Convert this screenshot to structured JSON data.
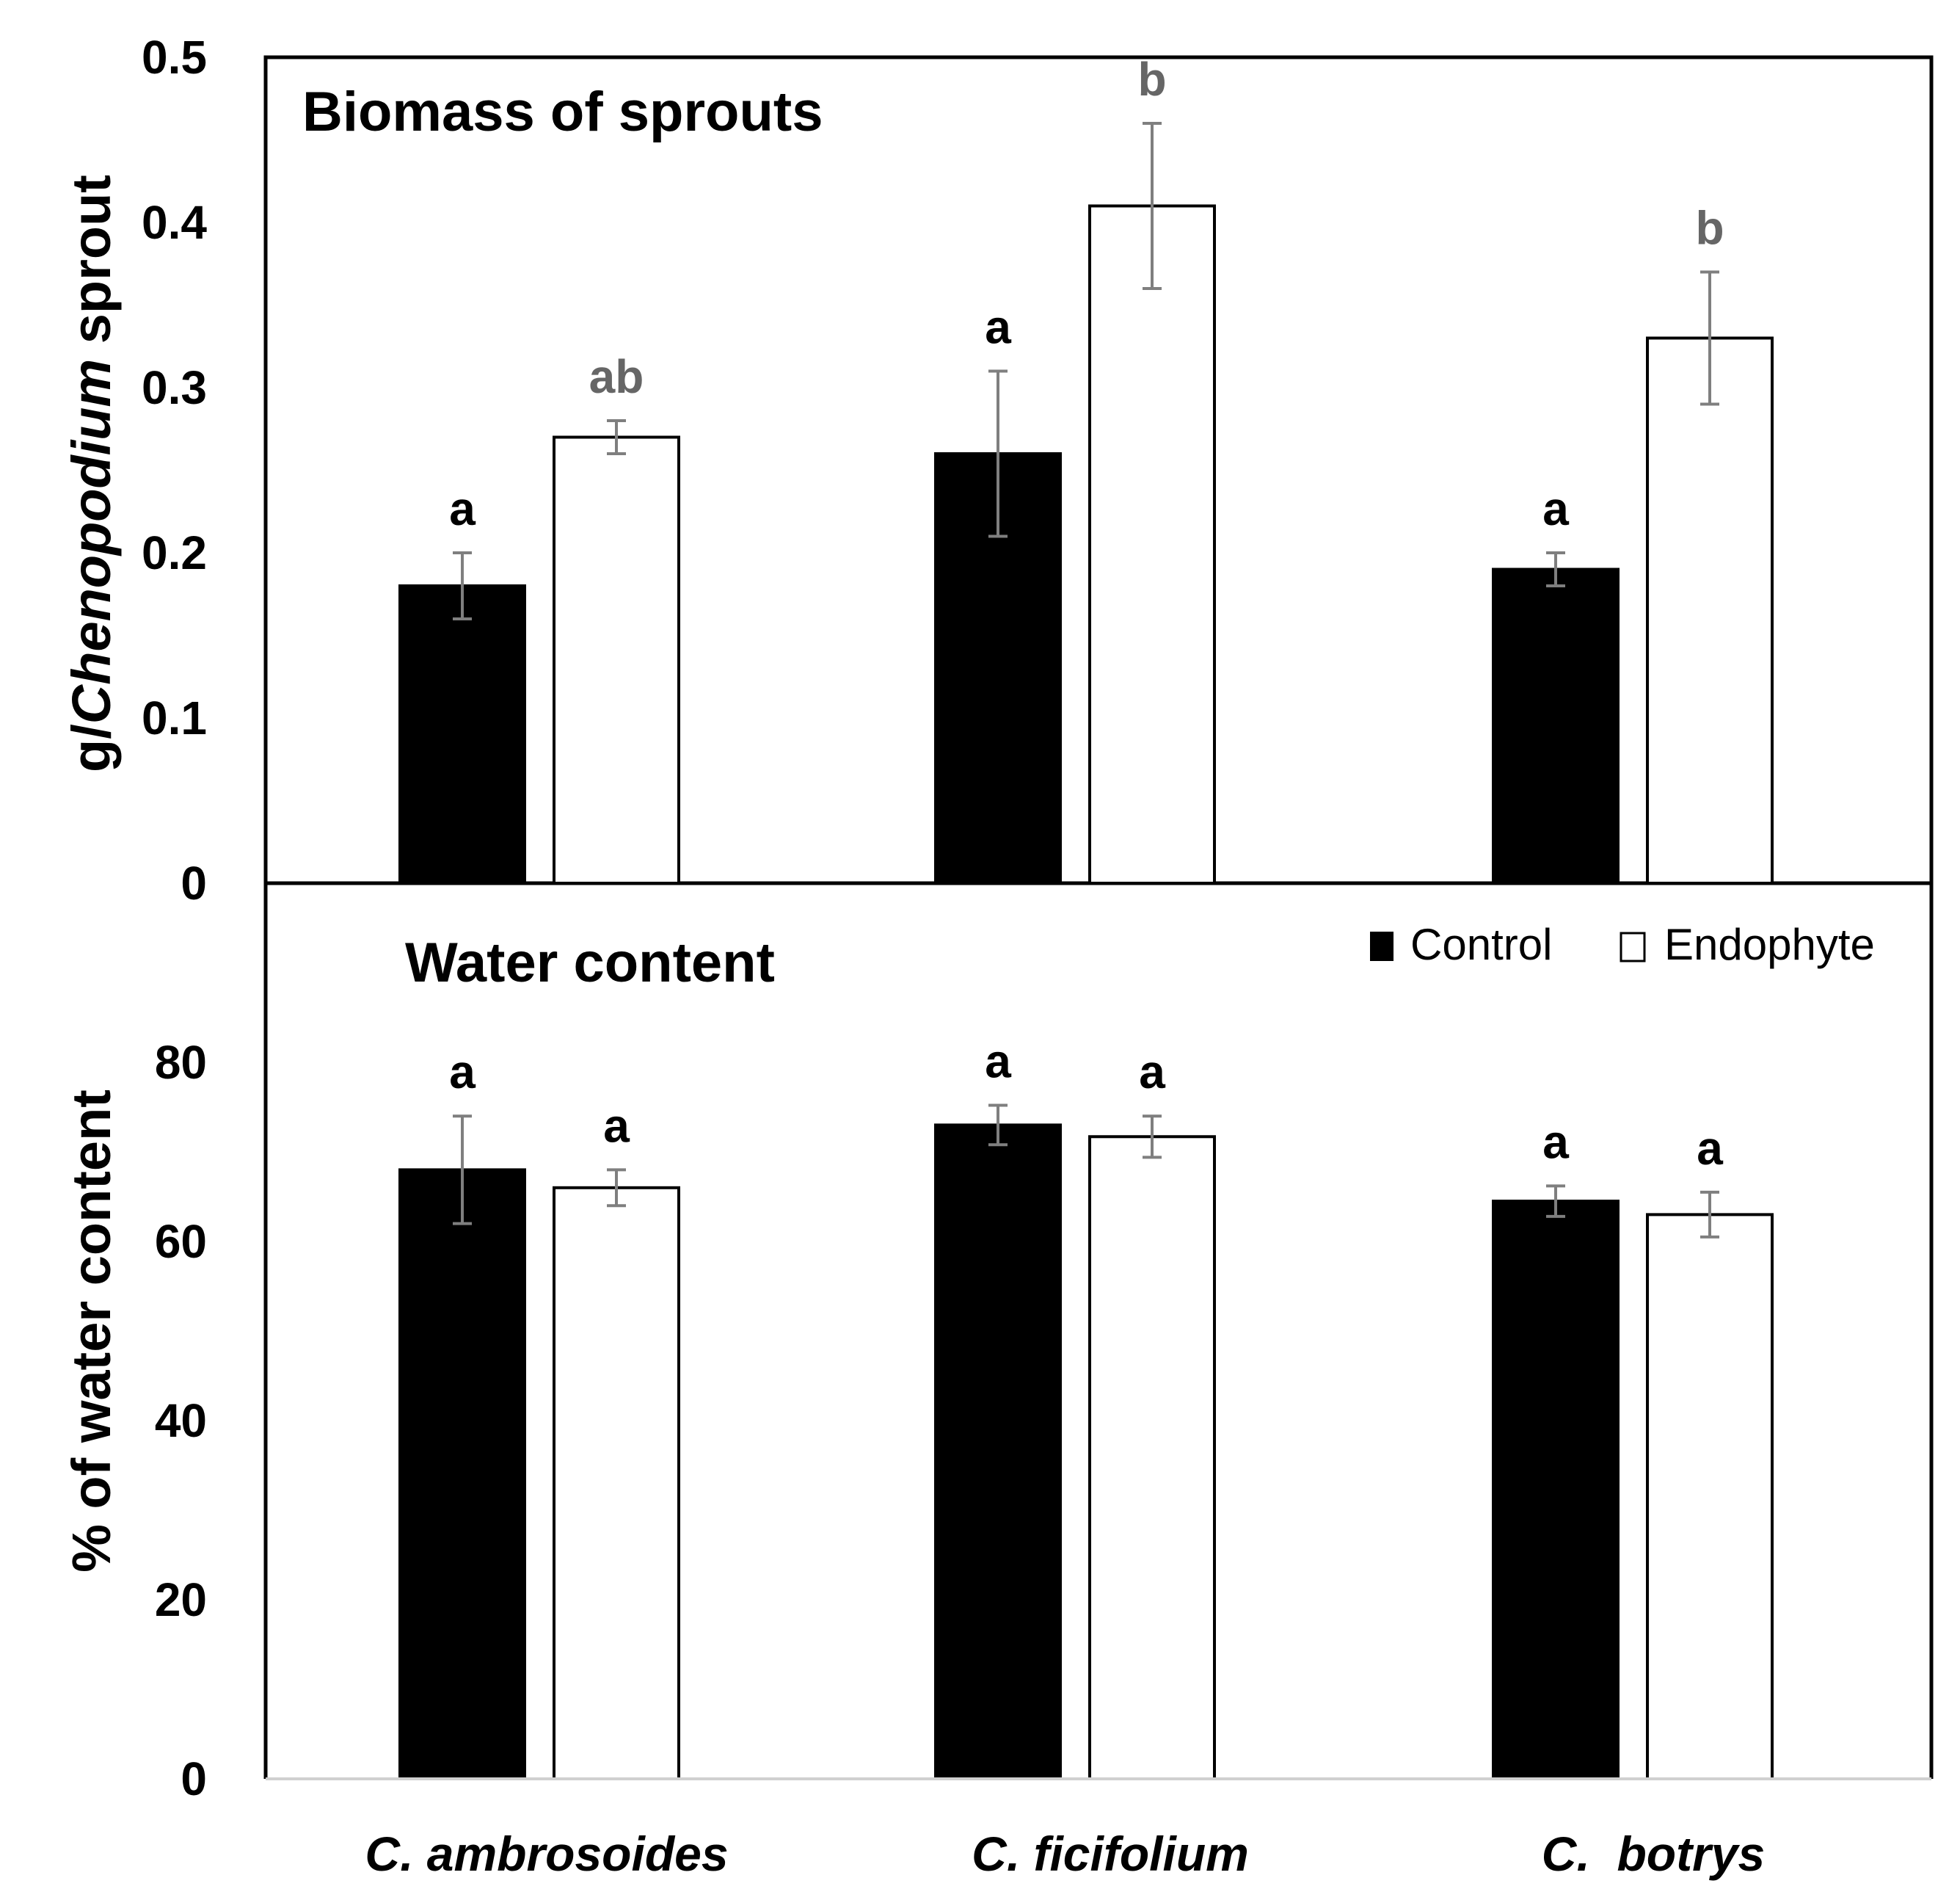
{
  "chart_data": [
    {
      "type": "bar",
      "title": "Biomass of sprouts",
      "ylabel_prefix": "g/",
      "ylabel_italic": "Chenopodium",
      "ylabel_suffix": " sprout",
      "ylim": [
        0,
        0.5
      ],
      "yticks": [
        "0",
        "0.1",
        "0.2",
        "0.3",
        "0.4",
        "0.5"
      ],
      "categories": [
        "C. ambrosoides",
        "C. ficifolium",
        "C.  botrys"
      ],
      "series": [
        {
          "name": "Control",
          "values": [
            0.18,
            0.26,
            0.19
          ],
          "errors": [
            0.02,
            0.05,
            0.01
          ],
          "letters": [
            "a",
            "a",
            "a"
          ],
          "fill": "#000000",
          "letter_color": "#000000"
        },
        {
          "name": "Endophyte",
          "values": [
            0.27,
            0.41,
            0.33
          ],
          "errors": [
            0.01,
            0.05,
            0.04
          ],
          "letters": [
            "ab",
            "b",
            "b"
          ],
          "fill": "#ffffff",
          "letter_color": "#666666"
        }
      ]
    },
    {
      "type": "bar",
      "title": "Water content",
      "ylabel": "% of water content",
      "ylim": [
        0,
        100
      ],
      "yticks": [
        "0",
        "20",
        "40",
        "60",
        "80"
      ],
      "categories": [
        "C. ambrosoides",
        "C. ficifolium",
        "C.  botrys"
      ],
      "series": [
        {
          "name": "Control",
          "values": [
            68,
            73,
            64.5
          ],
          "errors": [
            6,
            2.2,
            1.7
          ],
          "letters": [
            "a",
            "a",
            "a"
          ],
          "fill": "#000000",
          "letter_color": "#000000"
        },
        {
          "name": "Endophyte",
          "values": [
            66,
            71.7,
            63
          ],
          "errors": [
            2,
            2.3,
            2.5
          ],
          "letters": [
            "a",
            "a",
            "a"
          ],
          "fill": "#ffffff",
          "letter_color": "#000000"
        }
      ]
    }
  ],
  "legend": {
    "control_label": "Control",
    "endophyte_label": "Endophyte"
  },
  "colors": {
    "error_bar": "#7f7f7f",
    "axis": "#000000"
  }
}
